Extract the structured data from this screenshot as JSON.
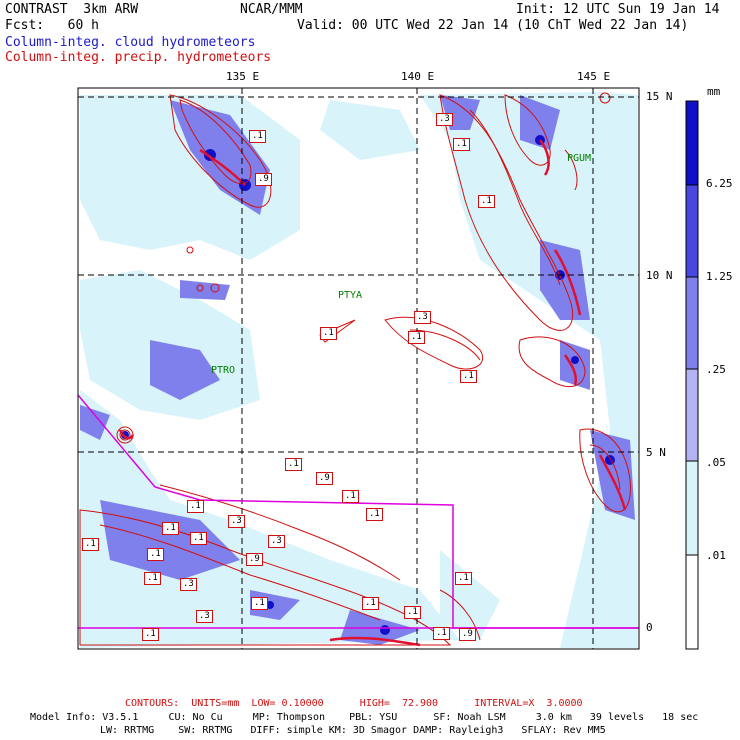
{
  "header": {
    "model": "CONTRAST  3km ARW",
    "center": "NCAR/MMM",
    "init": "Init: 12 UTC Sun 19 Jan 14",
    "fcst": "Fcst:   60 h",
    "valid": "Valid: 00 UTC Wed 22 Jan 14 (10 ChT Wed 22 Jan 14)",
    "field1": "Column-integ. cloud hydrometeors",
    "field2": "Column-integ. precip. hydrometeors"
  },
  "map": {
    "lon_labels": [
      "135 E",
      "140 E",
      "145 E"
    ],
    "lat_labels": [
      "15 N",
      "10 N",
      "5 N",
      "0"
    ],
    "stations": [
      "PGUM",
      "PTYA",
      "PTRO"
    ],
    "contour_labels": [
      ".1",
      ".3",
      ".9",
      ".1",
      ".1",
      ".1",
      ".3",
      ".1",
      ".3",
      ".1",
      ".1",
      ".1",
      ".1",
      ".3",
      ".1",
      ".3",
      ".9",
      ".1",
      ".9",
      ".1",
      ".1",
      ".1",
      ".3",
      ".1",
      ".1",
      ".1",
      ".1",
      ".9",
      ".1",
      ".1",
      ".1"
    ]
  },
  "colorbar": {
    "unit": "mm",
    "labels": [
      "6.25",
      "1.25",
      ".25",
      ".05",
      ".01"
    ],
    "colors": [
      "#1010c8",
      "#4848e0",
      "#8080ec",
      "#b4b4f4",
      "#d8f4fa",
      "#ffffff"
    ]
  },
  "footer": {
    "contours": "CONTOURS:  UNITS=mm  LOW= 0.10000      HIGH=  72.900      INTERVAL=X  3.0000",
    "model_info_1": "Model Info: V3.5.1     CU: No Cu     MP: Thompson    PBL: YSU      SF: Noah LSM     3.0 km   39 levels   18 sec",
    "model_info_2": "LW: RRTMG    SW: RRTMG   DIFF: simple KM: 3D Smagor DAMP: Rayleigh3   SFLAY: Rev MM5"
  }
}
